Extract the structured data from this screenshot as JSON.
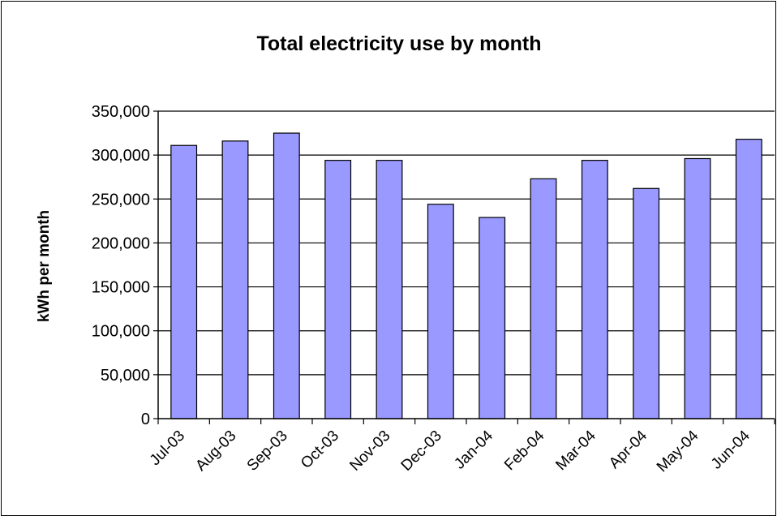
{
  "chart_data": {
    "type": "bar",
    "title": "Total electricity use by month",
    "xlabel": "",
    "ylabel": "kWh per month",
    "categories": [
      "Jul-03",
      "Aug-03",
      "Sep-03",
      "Oct-03",
      "Nov-03",
      "Dec-03",
      "Jan-04",
      "Feb-04",
      "Mar-04",
      "Apr-04",
      "May-04",
      "Jun-04"
    ],
    "values": [
      311000,
      316000,
      325000,
      294000,
      294000,
      244000,
      229000,
      273000,
      294000,
      262000,
      296000,
      318000
    ],
    "ylim": [
      0,
      350000
    ],
    "yticks": [
      0,
      50000,
      100000,
      150000,
      200000,
      250000,
      300000,
      350000
    ],
    "ytick_labels": [
      "0",
      "50,000",
      "100,000",
      "150,000",
      "200,000",
      "250,000",
      "300,000",
      "350,000"
    ],
    "grid": true,
    "legend": "none",
    "bar_color": "#9999ff",
    "bar_edge_color": "#000000"
  }
}
